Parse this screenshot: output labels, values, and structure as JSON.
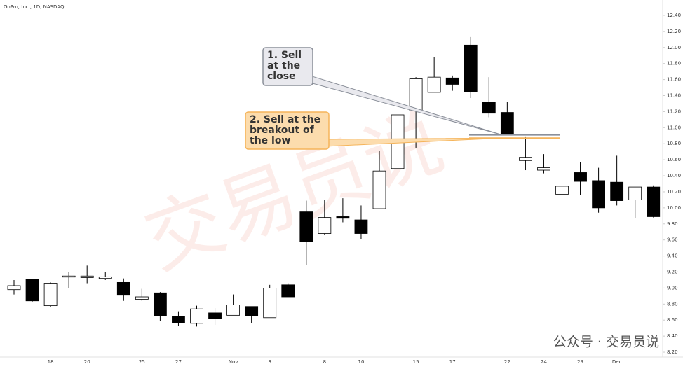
{
  "chart_data": {
    "type": "candlestick",
    "title": "GoPro, Inc., 1D, NASDAQ",
    "categories": [
      null,
      null,
      "18",
      null,
      "20",
      null,
      null,
      "25",
      null,
      "27",
      null,
      null,
      "Nov",
      null,
      "3",
      null,
      null,
      "8",
      null,
      "10",
      null,
      null,
      "15",
      null,
      "17",
      null,
      null,
      "22",
      null,
      "24",
      null,
      "29",
      null,
      "Dec",
      null,
      null
    ],
    "open": [
      8.98,
      9.11,
      8.78,
      9.14,
      9.13,
      9.12,
      9.07,
      8.86,
      8.94,
      8.65,
      8.56,
      8.69,
      8.66,
      8.77,
      8.63,
      9.04,
      9.95,
      9.68,
      9.89,
      9.85,
      9.99,
      10.49,
      11.21,
      11.44,
      11.62,
      12.03,
      11.32,
      11.19,
      10.59,
      10.47,
      10.17,
      10.44,
      10.34,
      10.32,
      10.1,
      10.26
    ],
    "high": [
      9.1,
      9.11,
      9.07,
      9.2,
      9.28,
      9.2,
      9.12,
      8.99,
      8.95,
      8.71,
      8.78,
      8.75,
      8.92,
      8.77,
      9.04,
      9.06,
      10.09,
      10.1,
      10.12,
      10.03,
      10.71,
      11.16,
      11.63,
      11.88,
      11.65,
      12.13,
      11.63,
      11.32,
      10.89,
      10.67,
      10.5,
      10.57,
      10.5,
      10.65,
      10.26,
      10.28
    ],
    "low": [
      8.92,
      8.83,
      8.76,
      9.0,
      9.06,
      9.1,
      8.84,
      8.84,
      8.59,
      8.53,
      8.52,
      8.54,
      8.66,
      8.56,
      8.63,
      8.89,
      9.29,
      9.66,
      9.82,
      9.61,
      9.99,
      10.49,
      10.75,
      11.44,
      11.46,
      11.37,
      11.13,
      10.91,
      10.47,
      10.43,
      10.13,
      10.16,
      9.94,
      10.03,
      9.87,
      9.88
    ],
    "close": [
      9.03,
      8.84,
      9.06,
      9.15,
      9.15,
      9.14,
      8.91,
      8.89,
      8.65,
      8.57,
      8.74,
      8.62,
      8.79,
      8.65,
      9.0,
      8.89,
      9.58,
      9.88,
      9.87,
      9.68,
      10.46,
      11.16,
      11.61,
      11.63,
      11.54,
      11.45,
      11.18,
      10.91,
      10.63,
      10.5,
      10.27,
      10.33,
      10.0,
      10.09,
      10.26,
      9.89
    ],
    "up_color": "#ffffff",
    "down_color": "#000000",
    "ylim": [
      8.1,
      12.5
    ],
    "yticks": [
      {
        "value": 8.2,
        "label": "8.20"
      },
      {
        "value": 8.4,
        "label": "8.40"
      },
      {
        "value": 8.6,
        "label": "8.60"
      },
      {
        "value": 8.8,
        "label": "8.80"
      },
      {
        "value": 9.0,
        "label": "9.00"
      },
      {
        "value": 9.2,
        "label": "9.20"
      },
      {
        "value": 9.4,
        "label": "9.40"
      },
      {
        "value": 9.6,
        "label": "9.60"
      },
      {
        "value": 9.8,
        "label": "9.80"
      },
      {
        "value": 10.0,
        "label": "10.00"
      },
      {
        "value": 10.2,
        "label": "10.20"
      },
      {
        "value": 10.4,
        "label": "10.40"
      },
      {
        "value": 10.6,
        "label": "10.60"
      },
      {
        "value": 10.8,
        "label": "10.80"
      },
      {
        "value": 11.0,
        "label": "11.00"
      },
      {
        "value": 11.2,
        "label": "11.20"
      },
      {
        "value": 11.4,
        "label": "11.40"
      },
      {
        "value": 11.6,
        "label": "11.60"
      },
      {
        "value": 11.8,
        "label": "11.80"
      },
      {
        "value": 12.0,
        "label": "12.00"
      },
      {
        "value": 12.2,
        "label": "12.20"
      },
      {
        "value": 12.4,
        "label": "12.40"
      }
    ],
    "annotations": [
      {
        "lines": [
          "1. Sell",
          "at the",
          "close"
        ],
        "value": 10.91,
        "color": "#8a8f99",
        "fill": "#e9e9ee"
      },
      {
        "lines": [
          "2. Sell at the",
          "breakout of",
          "the low"
        ],
        "value": 10.87,
        "color": "#f5b45a",
        "fill": "#fcdcad"
      }
    ],
    "watermark": "公众号 · 交易员说"
  }
}
